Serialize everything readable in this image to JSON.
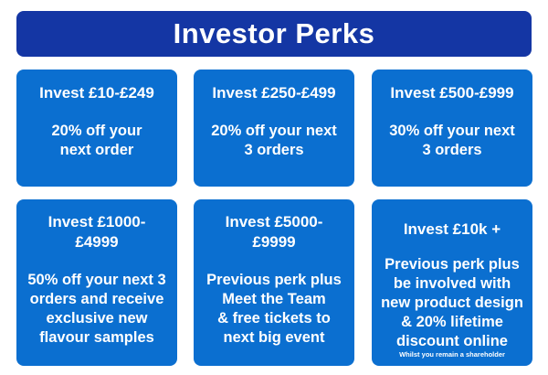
{
  "header": {
    "title": "Investor Perks"
  },
  "tiers": [
    {
      "amount": "Invest £10-£249",
      "perk": "20% off your\nnext order"
    },
    {
      "amount": "Invest £250-£499",
      "perk": "20% off your next\n3 orders"
    },
    {
      "amount": "Invest £500-£999",
      "perk": "30% off your next\n3 orders"
    },
    {
      "amount": "Invest £1000-\n£4999",
      "perk": "50% off your next 3\norders and receive\nexclusive new\nflavour samples"
    },
    {
      "amount": "Invest £5000-\n£9999",
      "perk": "Previous perk plus\nMeet the Team\n& free tickets to\nnext big event"
    },
    {
      "amount": "Invest £10k +",
      "perk": "Previous perk plus\nbe involved with\nnew product design\n& 20% lifetime\ndiscount online",
      "note": "Whilst you remain a shareholder"
    }
  ],
  "colors": {
    "header": "#1436a4",
    "card": "#0b6fd0",
    "text": "#ffffff"
  }
}
